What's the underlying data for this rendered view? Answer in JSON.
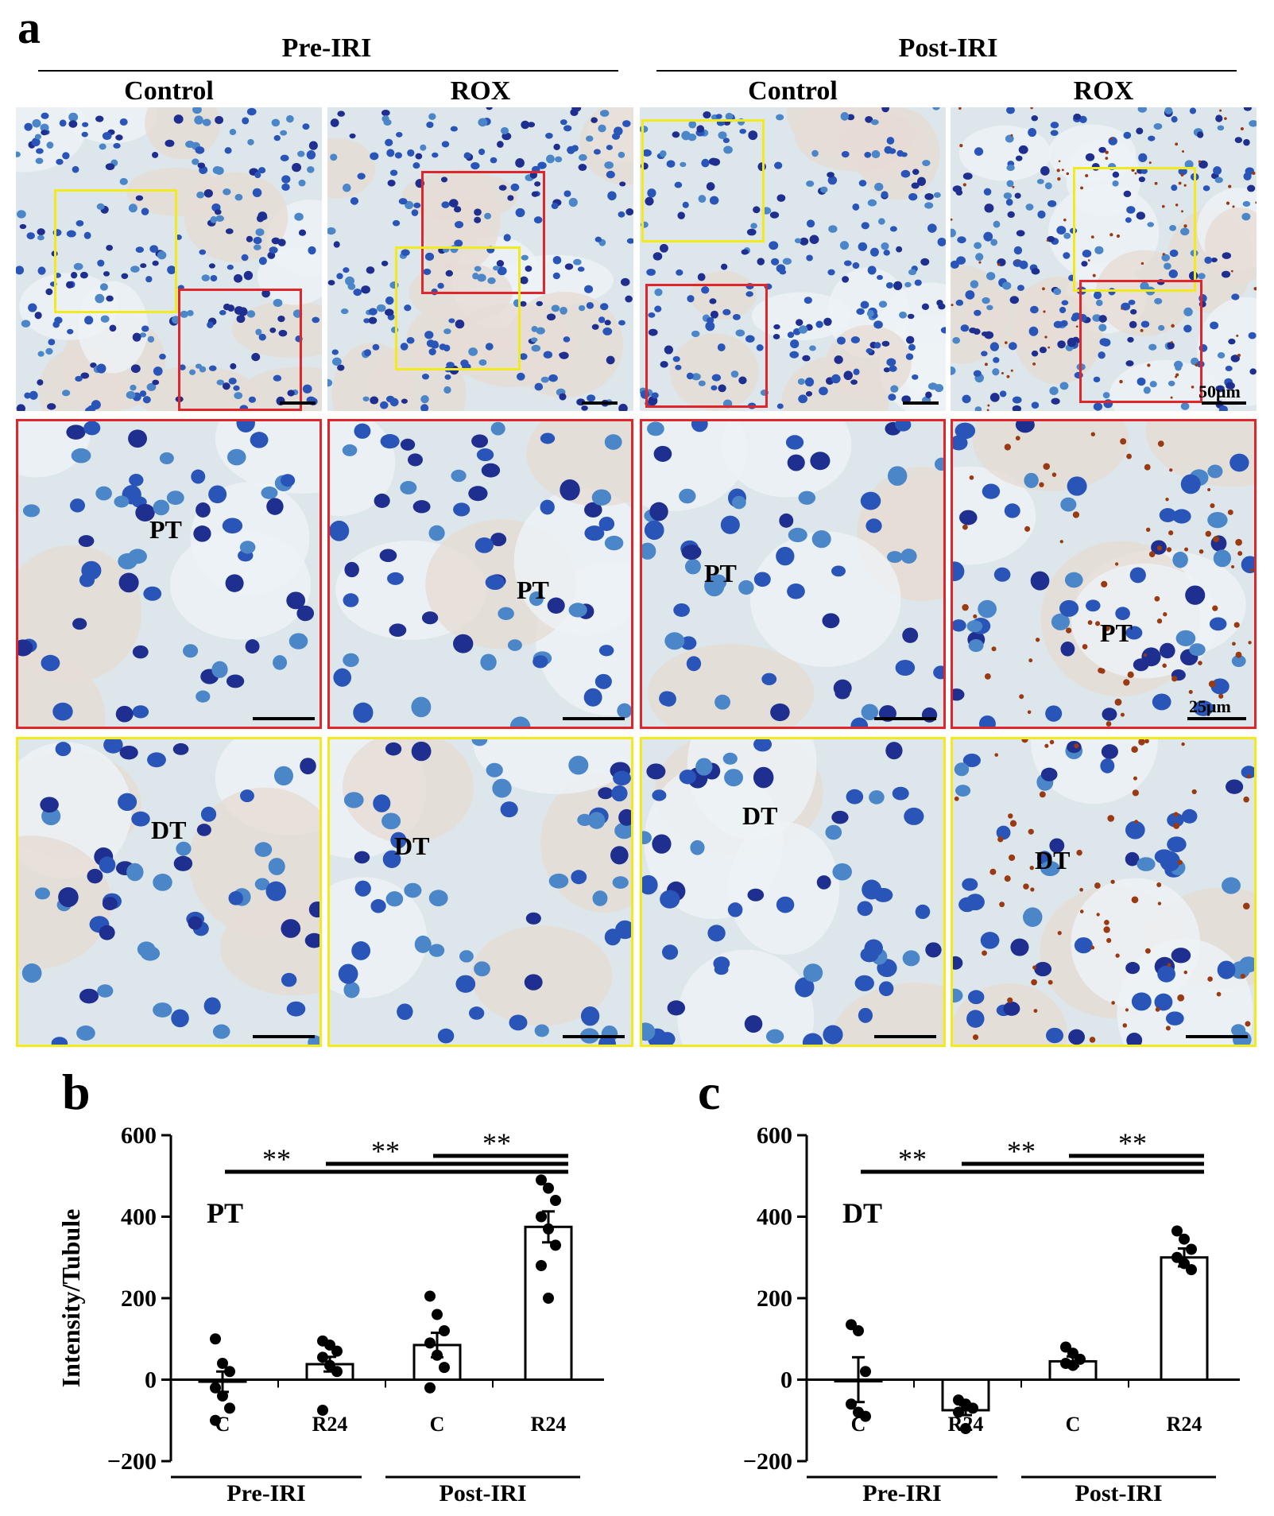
{
  "panel_a": {
    "letter": "a",
    "groups": [
      {
        "label": "Pre-IRI",
        "columns": [
          "Control",
          "ROX"
        ]
      },
      {
        "label": "Post-IRI",
        "columns": [
          "Control",
          "ROX"
        ]
      }
    ],
    "scale_top": "50μm",
    "scale_zoom": "25μm",
    "zoom_labels": {
      "red": [
        "PT",
        "PT",
        "PT",
        "PT"
      ],
      "yellow": [
        "DT",
        "DT",
        "DT",
        "DT"
      ]
    },
    "colors": {
      "pt_frame": "#e0262b",
      "dt_frame": "#f2ea1c",
      "stain_nuclei": "#2a55b8",
      "stain_signal": "#9a3a12",
      "background": "#dde6ea"
    }
  },
  "chart_data": [
    {
      "panel": "b",
      "type": "bar",
      "region_label": "PT",
      "ylabel": "Intensity/Tubule",
      "ylim": [
        -200,
        600
      ],
      "yticks": [
        "−200",
        "0",
        "200",
        "400",
        "600"
      ],
      "categories": [
        "C",
        "R24",
        "C",
        "R24"
      ],
      "groups": [
        {
          "label": "Pre-IRI",
          "categories": [
            "C",
            "R24"
          ]
        },
        {
          "label": "Post-IRI",
          "categories": [
            "C",
            "R24"
          ]
        }
      ],
      "values": [
        -5,
        38,
        85,
        375
      ],
      "errors": [
        25,
        18,
        30,
        38
      ],
      "points": [
        [
          100,
          40,
          20,
          -20,
          -40,
          -70,
          -100
        ],
        [
          95,
          85,
          70,
          55,
          35,
          20,
          -75
        ],
        [
          205,
          160,
          120,
          90,
          60,
          30,
          -20
        ],
        [
          490,
          470,
          440,
          400,
          370,
          330,
          280,
          200
        ]
      ],
      "significance": [
        {
          "label": "**",
          "from": 0,
          "to": 3
        },
        {
          "label": "**",
          "from": 1,
          "to": 3
        },
        {
          "label": "**",
          "from": 2,
          "to": 3
        }
      ]
    },
    {
      "panel": "c",
      "type": "bar",
      "region_label": "DT",
      "ylabel": "",
      "ylim": [
        -200,
        600
      ],
      "yticks": [
        "−200",
        "0",
        "200",
        "400",
        "600"
      ],
      "categories": [
        "C",
        "R24",
        "C",
        "R24"
      ],
      "groups": [
        {
          "label": "Pre-IRI",
          "categories": [
            "C",
            "R24"
          ]
        },
        {
          "label": "Post-IRI",
          "categories": [
            "C",
            "R24"
          ]
        }
      ],
      "values": [
        0,
        -75,
        45,
        300
      ],
      "errors": [
        55,
        12,
        12,
        22
      ],
      "points": [
        [
          135,
          120,
          20,
          -60,
          -80,
          -90
        ],
        [
          -50,
          -60,
          -70,
          -80,
          -120
        ],
        [
          80,
          65,
          50,
          40,
          35
        ],
        [
          365,
          345,
          320,
          300,
          285,
          270
        ]
      ],
      "significance": [
        {
          "label": "**",
          "from": 0,
          "to": 3
        },
        {
          "label": "**",
          "from": 1,
          "to": 3
        },
        {
          "label": "**",
          "from": 2,
          "to": 3
        }
      ]
    }
  ]
}
